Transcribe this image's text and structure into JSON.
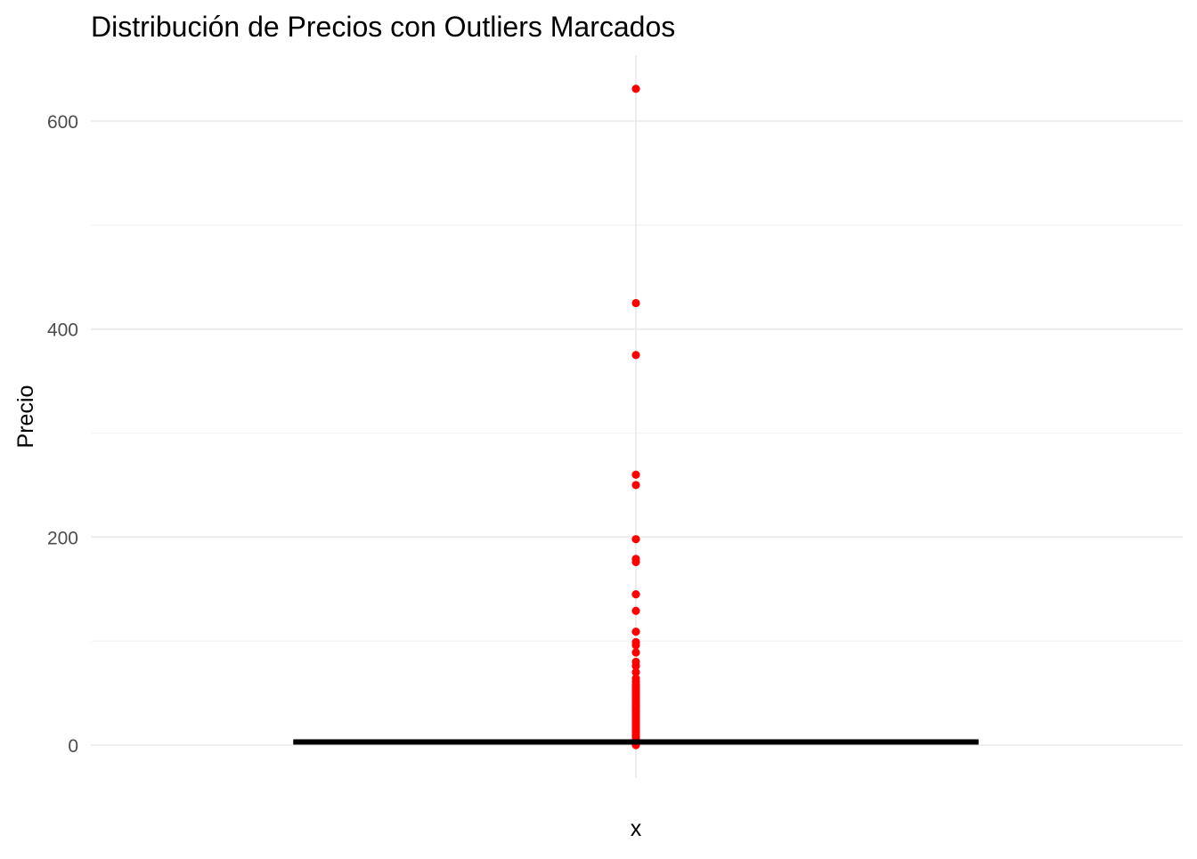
{
  "chart_data": {
    "type": "boxplot",
    "title": "Distribución de Precios con Outliers Marcados",
    "xlabel": "",
    "ylabel": "Precio",
    "x_tick_labels": [
      "x"
    ],
    "y_ticks": [
      0,
      200,
      400,
      600
    ],
    "y_tick_labels": [
      "0",
      "200",
      "400",
      "600"
    ],
    "ylim": [
      -30,
      650
    ],
    "grid": true,
    "legend": "none",
    "box": {
      "category": "x",
      "min": 0,
      "q1": 2,
      "median": 3,
      "q3": 4,
      "max": 6
    },
    "outliers": [
      631,
      425,
      375,
      260,
      250,
      198,
      179,
      176,
      145,
      129,
      109,
      99,
      96,
      89,
      80,
      76,
      70,
      64,
      61,
      58,
      56,
      54,
      52,
      50,
      48,
      46,
      44,
      42,
      40,
      38,
      36,
      34,
      32,
      30,
      28,
      26,
      24,
      22,
      20,
      18,
      16,
      14,
      12,
      10,
      8,
      6,
      4,
      2,
      1,
      0
    ],
    "colors": {
      "outlier": "#ff0000",
      "box": "#000000",
      "grid_major": "#ebebeb",
      "grid_minor": "#f3f3f3",
      "background": "#ffffff"
    }
  }
}
